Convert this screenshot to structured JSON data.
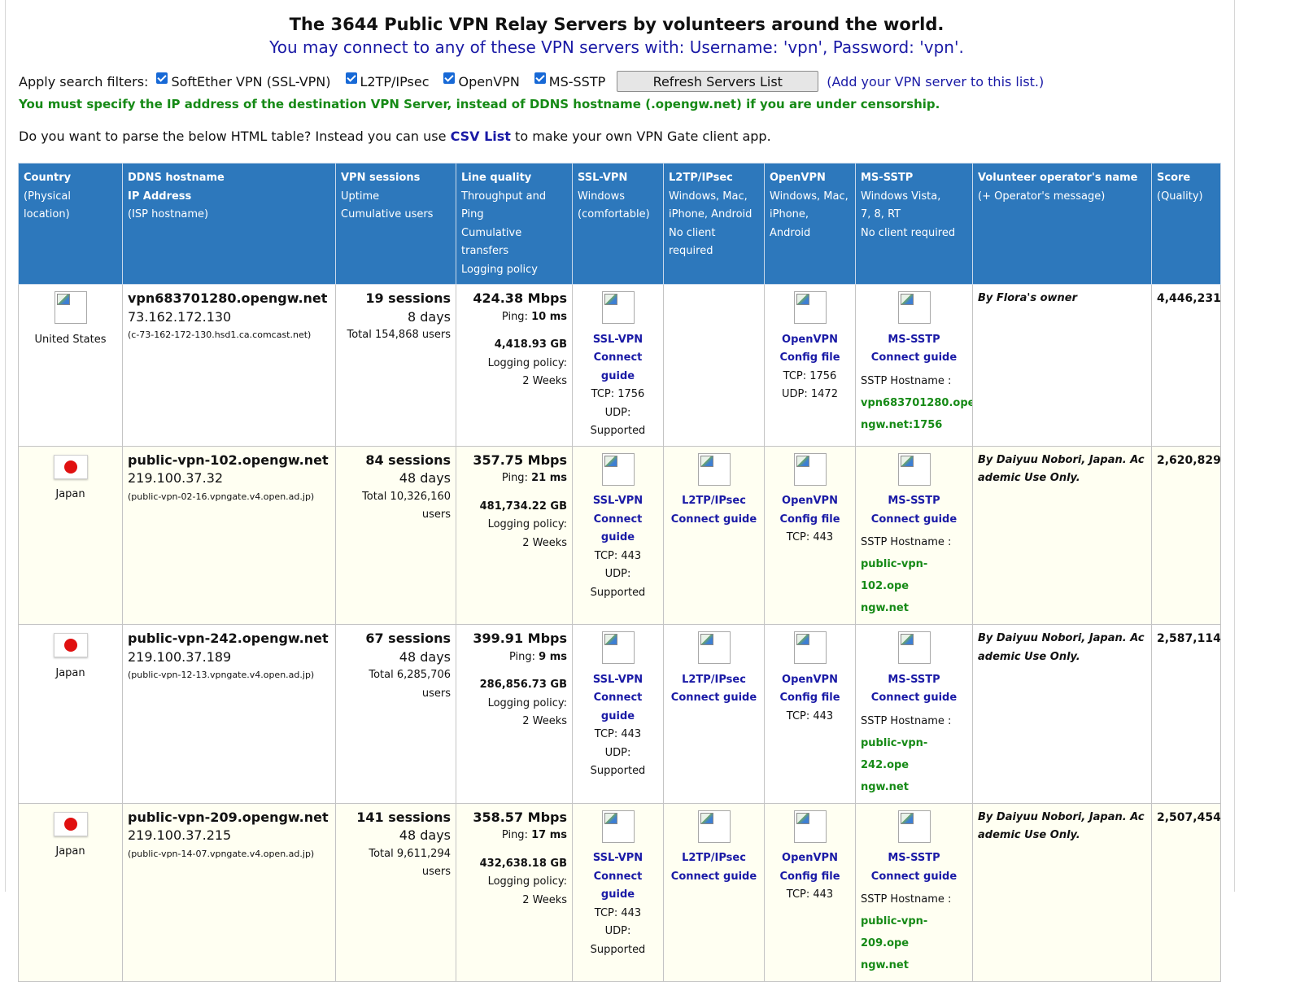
{
  "header": {
    "title": "The 3644 Public VPN Relay Servers by volunteers around the world.",
    "subtitle": "You may connect to any of these VPN servers with: Username: 'vpn', Password: 'vpn'."
  },
  "filters": {
    "label": "Apply search filters:",
    "options": [
      "SoftEther VPN (SSL-VPN)",
      "L2TP/IPsec",
      "OpenVPN",
      "MS-SSTP"
    ],
    "refresh_label": "Refresh Servers List",
    "add_link": "(Add your VPN server to this list.)"
  },
  "notice": "You must specify the IP address of the destination VPN Server, instead of DDNS hostname (.opengw.net) if you are under censorship.",
  "parse": {
    "prefix": "Do you want to parse the below HTML table? Instead you can use",
    "link": "CSV List",
    "suffix": "to make your own VPN Gate client app."
  },
  "columns": [
    {
      "title": "Country",
      "lines": [
        "(Physical location)"
      ]
    },
    {
      "title": "DDNS hostname",
      "bold2": "IP Address",
      "lines": [
        "(ISP hostname)"
      ]
    },
    {
      "title": "VPN sessions",
      "lines": [
        "Uptime",
        "Cumulative users"
      ]
    },
    {
      "title": "Line quality",
      "lines": [
        "Throughput and Ping",
        "Cumulative transfers",
        "Logging policy"
      ]
    },
    {
      "title": "SSL-VPN",
      "lines": [
        "Windows",
        "(comfortable)"
      ]
    },
    {
      "title": "L2TP/IPsec",
      "lines": [
        "Windows, Mac,",
        "iPhone, Android",
        "No client required"
      ]
    },
    {
      "title": "OpenVPN",
      "lines": [
        "Windows, Mac,",
        "iPhone, Android"
      ]
    },
    {
      "title": "MS-SSTP",
      "lines": [
        "Windows Vista,",
        "7, 8, RT",
        "No client required"
      ]
    },
    {
      "title": "Volunteer operator's name",
      "lines": [
        "(+ Operator's message)"
      ]
    },
    {
      "title": "Score",
      "lines": [
        "(Quality)"
      ]
    }
  ],
  "rows": [
    {
      "country": "United States",
      "flag": "placeholder",
      "hostname": "vpn683701280.opengw.net",
      "ip": "73.162.172.130",
      "isp": "(c-73-162-172-130.hsd1.ca.comcast.net)",
      "sessions": "19 sessions",
      "uptime": "8 days",
      "users": "Total 154,868 users",
      "throughput": "424.38 Mbps",
      "ping_label": "Ping:",
      "ping": "10 ms",
      "transfers": "4,418.93 GB",
      "logging_label": "Logging policy:",
      "logging": "2 Weeks",
      "ssl": {
        "name": "SSL-VPN",
        "guide": "Connect guide",
        "tcp": "TCP: 1756",
        "udp": "UDP: Supported"
      },
      "l2tp": null,
      "openvpn": {
        "name": "OpenVPN",
        "guide": "Config file",
        "tcp": "TCP: 1756",
        "udp": "UDP: 1472"
      },
      "sstp": {
        "name": "MS-SSTP",
        "guide": "Connect guide",
        "host_label": "SSTP Hostname :",
        "host1": "vpn683701280.ope",
        "host2": "ngw.net:1756"
      },
      "operator": "By Flora's owner",
      "score": "4,446,231"
    },
    {
      "country": "Japan",
      "flag": "jp",
      "hostname": "public-vpn-102.opengw.net",
      "ip": "219.100.37.32",
      "isp": "(public-vpn-02-16.vpngate.v4.open.ad.jp)",
      "sessions": "84 sessions",
      "uptime": "48 days",
      "users": "Total 10,326,160 users",
      "throughput": "357.75 Mbps",
      "ping_label": "Ping:",
      "ping": "21 ms",
      "transfers": "481,734.22 GB",
      "logging_label": "Logging policy:",
      "logging": "2 Weeks",
      "ssl": {
        "name": "SSL-VPN",
        "guide": "Connect guide",
        "tcp": "TCP: 443",
        "udp": "UDP: Supported"
      },
      "l2tp": {
        "name": "L2TP/IPsec",
        "guide": "Connect guide"
      },
      "openvpn": {
        "name": "OpenVPN",
        "guide": "Config file",
        "tcp": "TCP: 443",
        "udp": ""
      },
      "sstp": {
        "name": "MS-SSTP",
        "guide": "Connect guide",
        "host_label": "SSTP Hostname :",
        "host1": "public-vpn-102.ope",
        "host2": "ngw.net"
      },
      "operator": "By Daiyuu Nobori, Japan. Academic Use Only.",
      "score": "2,620,829"
    },
    {
      "country": "Japan",
      "flag": "jp",
      "hostname": "public-vpn-242.opengw.net",
      "ip": "219.100.37.189",
      "isp": "(public-vpn-12-13.vpngate.v4.open.ad.jp)",
      "sessions": "67 sessions",
      "uptime": "48 days",
      "users": "Total 6,285,706 users",
      "throughput": "399.91 Mbps",
      "ping_label": "Ping:",
      "ping": "9 ms",
      "transfers": "286,856.73 GB",
      "logging_label": "Logging policy:",
      "logging": "2 Weeks",
      "ssl": {
        "name": "SSL-VPN",
        "guide": "Connect guide",
        "tcp": "TCP: 443",
        "udp": "UDP: Supported"
      },
      "l2tp": {
        "name": "L2TP/IPsec",
        "guide": "Connect guide"
      },
      "openvpn": {
        "name": "OpenVPN",
        "guide": "Config file",
        "tcp": "TCP: 443",
        "udp": ""
      },
      "sstp": {
        "name": "MS-SSTP",
        "guide": "Connect guide",
        "host_label": "SSTP Hostname :",
        "host1": "public-vpn-242.ope",
        "host2": "ngw.net"
      },
      "operator": "By Daiyuu Nobori, Japan. Academic Use Only.",
      "score": "2,587,114"
    },
    {
      "country": "Japan",
      "flag": "jp",
      "hostname": "public-vpn-209.opengw.net",
      "ip": "219.100.37.215",
      "isp": "(public-vpn-14-07.vpngate.v4.open.ad.jp)",
      "sessions": "141 sessions",
      "uptime": "48 days",
      "users": "Total 9,611,294 users",
      "throughput": "358.57 Mbps",
      "ping_label": "Ping:",
      "ping": "17 ms",
      "transfers": "432,638.18 GB",
      "logging_label": "Logging policy:",
      "logging": "2 Weeks",
      "ssl": {
        "name": "SSL-VPN",
        "guide": "Connect guide",
        "tcp": "TCP: 443",
        "udp": "UDP: Supported"
      },
      "l2tp": {
        "name": "L2TP/IPsec",
        "guide": "Connect guide"
      },
      "openvpn": {
        "name": "OpenVPN",
        "guide": "Config file",
        "tcp": "TCP: 443",
        "udp": ""
      },
      "sstp": {
        "name": "MS-SSTP",
        "guide": "Connect guide",
        "host_label": "SSTP Hostname :",
        "host1": "public-vpn-209.ope",
        "host2": "ngw.net"
      },
      "operator": "By Daiyuu Nobori, Japan. Academic Use Only.",
      "score": "2,507,454"
    }
  ],
  "colors": {
    "header_bg": "#2d78bc",
    "link_blue": "#1a1aa6",
    "notice_green": "#168a16",
    "row_alt_bg": "#fffff2"
  }
}
